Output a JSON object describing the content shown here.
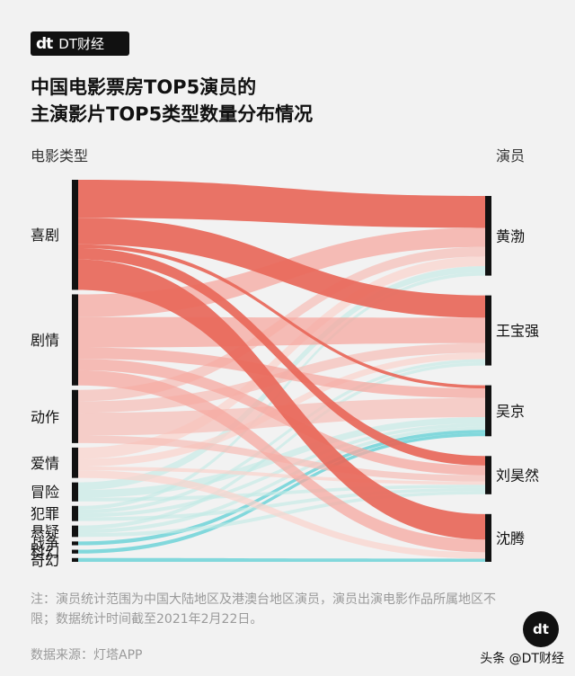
{
  "brand": {
    "logo_mark": "dt",
    "logo_name": "DT财经"
  },
  "title_lines": [
    "中国电影票房TOP5演员的",
    "主演影片TOP5类型数量分布情况"
  ],
  "left_axis_label": "电影类型",
  "right_axis_label": "演员",
  "note": "注：演员统计范围为中国大陆地区及港澳台地区演员，演员出演电影作品所属地区不限；数据统计时间截至2021年2月22日。",
  "source": "数据来源：灯塔APP",
  "attribution": "头条 @DT财经",
  "watermark_mark": "dt",
  "colors": {
    "comedy": "#e8685a",
    "drama": "#f5a8a0",
    "action": "#f7bdb6",
    "romance": "#fbd3cc",
    "cool": "#bfe9e4",
    "cyan": "#6fd3d8"
  },
  "chart_data": {
    "type": "sankey",
    "sources": [
      "喜剧",
      "剧情",
      "动作",
      "爱情",
      "冒险",
      "犯罪",
      "悬疑",
      "战争",
      "科幻",
      "奇幻"
    ],
    "targets": [
      "黄渤",
      "王宝强",
      "吴京",
      "刘昊然",
      "沈腾"
    ],
    "links": [
      {
        "source": "喜剧",
        "target": "黄渤",
        "value": 10
      },
      {
        "source": "喜剧",
        "target": "王宝强",
        "value": 7
      },
      {
        "source": "喜剧",
        "target": "吴京",
        "value": 1
      },
      {
        "source": "喜剧",
        "target": "刘昊然",
        "value": 3
      },
      {
        "source": "喜剧",
        "target": "沈腾",
        "value": 8
      },
      {
        "source": "剧情",
        "target": "黄渤",
        "value": 6
      },
      {
        "source": "剧情",
        "target": "王宝强",
        "value": 8
      },
      {
        "source": "剧情",
        "target": "吴京",
        "value": 3
      },
      {
        "source": "剧情",
        "target": "刘昊然",
        "value": 3
      },
      {
        "source": "剧情",
        "target": "沈腾",
        "value": 4
      },
      {
        "source": "动作",
        "target": "黄渤",
        "value": 3
      },
      {
        "source": "动作",
        "target": "王宝强",
        "value": 3
      },
      {
        "source": "动作",
        "target": "吴京",
        "value": 6
      },
      {
        "source": "动作",
        "target": "刘昊然",
        "value": 2
      },
      {
        "source": "爱情",
        "target": "黄渤",
        "value": 3
      },
      {
        "source": "爱情",
        "target": "王宝强",
        "value": 2
      },
      {
        "source": "爱情",
        "target": "刘昊然",
        "value": 1
      },
      {
        "source": "爱情",
        "target": "沈腾",
        "value": 2
      },
      {
        "source": "冒险",
        "target": "黄渤",
        "value": 2
      },
      {
        "source": "冒险",
        "target": "吴京",
        "value": 2
      },
      {
        "source": "冒险",
        "target": "刘昊然",
        "value": 1
      },
      {
        "source": "犯罪",
        "target": "黄渤",
        "value": 1
      },
      {
        "source": "犯罪",
        "target": "王宝强",
        "value": 1
      },
      {
        "source": "犯罪",
        "target": "吴京",
        "value": 1
      },
      {
        "source": "犯罪",
        "target": "刘昊然",
        "value": 1
      },
      {
        "source": "悬疑",
        "target": "王宝强",
        "value": 1
      },
      {
        "source": "悬疑",
        "target": "吴京",
        "value": 1
      },
      {
        "source": "悬疑",
        "target": "刘昊然",
        "value": 1
      },
      {
        "source": "战争",
        "target": "吴京",
        "value": 1
      },
      {
        "source": "科幻",
        "target": "吴京",
        "value": 1
      },
      {
        "source": "奇幻",
        "target": "沈腾",
        "value": 1
      }
    ]
  }
}
